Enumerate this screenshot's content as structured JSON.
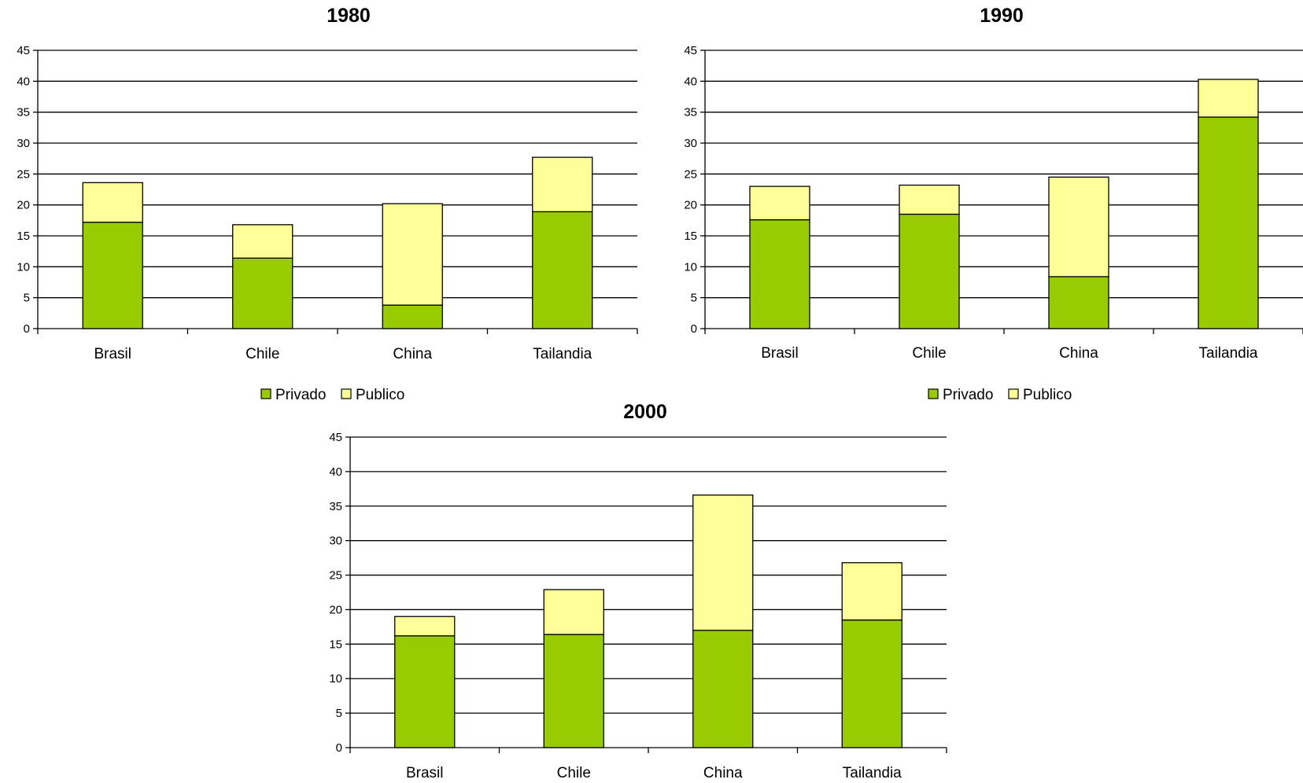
{
  "colors": {
    "privado": "#99cc00",
    "publico": "#ffff99",
    "bar_stroke": "#000000",
    "grid": "#000000"
  },
  "chart_data": [
    {
      "type": "bar",
      "stacked": true,
      "title": "1980",
      "categories": [
        "Brasil",
        "Chile",
        "China",
        "Tailandia"
      ],
      "series": [
        {
          "name": "Privado",
          "values": [
            17.2,
            11.4,
            3.8,
            18.9
          ]
        },
        {
          "name": "Publico",
          "values": [
            6.4,
            5.4,
            16.4,
            8.8
          ]
        }
      ],
      "ylim": [
        0,
        45
      ],
      "yticks": [
        "0",
        "5",
        "10",
        "15",
        "20",
        "25",
        "30",
        "35",
        "40",
        "45"
      ],
      "grid": true,
      "legend": "bottom"
    },
    {
      "type": "bar",
      "stacked": true,
      "title": "1990",
      "categories": [
        "Brasil",
        "Chile",
        "China",
        "Tailandia"
      ],
      "series": [
        {
          "name": "Privado",
          "values": [
            17.6,
            18.5,
            8.4,
            34.2
          ]
        },
        {
          "name": "Publico",
          "values": [
            5.4,
            4.7,
            16.1,
            6.1
          ]
        }
      ],
      "ylim": [
        0,
        45
      ],
      "yticks": [
        "0",
        "5",
        "10",
        "15",
        "20",
        "25",
        "30",
        "35",
        "40",
        "45"
      ],
      "grid": true,
      "legend": "bottom"
    },
    {
      "type": "bar",
      "stacked": true,
      "title": "2000",
      "categories": [
        "Brasil",
        "Chile",
        "China",
        "Tailandia"
      ],
      "series": [
        {
          "name": "Privado",
          "values": [
            16.2,
            16.4,
            17.0,
            18.5
          ]
        },
        {
          "name": "Publico",
          "values": [
            2.8,
            6.5,
            19.6,
            8.3
          ]
        }
      ],
      "ylim": [
        0,
        45
      ],
      "yticks": [
        "0",
        "5",
        "10",
        "15",
        "20",
        "25",
        "30",
        "35",
        "40",
        "45"
      ],
      "grid": true,
      "legend": "none"
    }
  ]
}
